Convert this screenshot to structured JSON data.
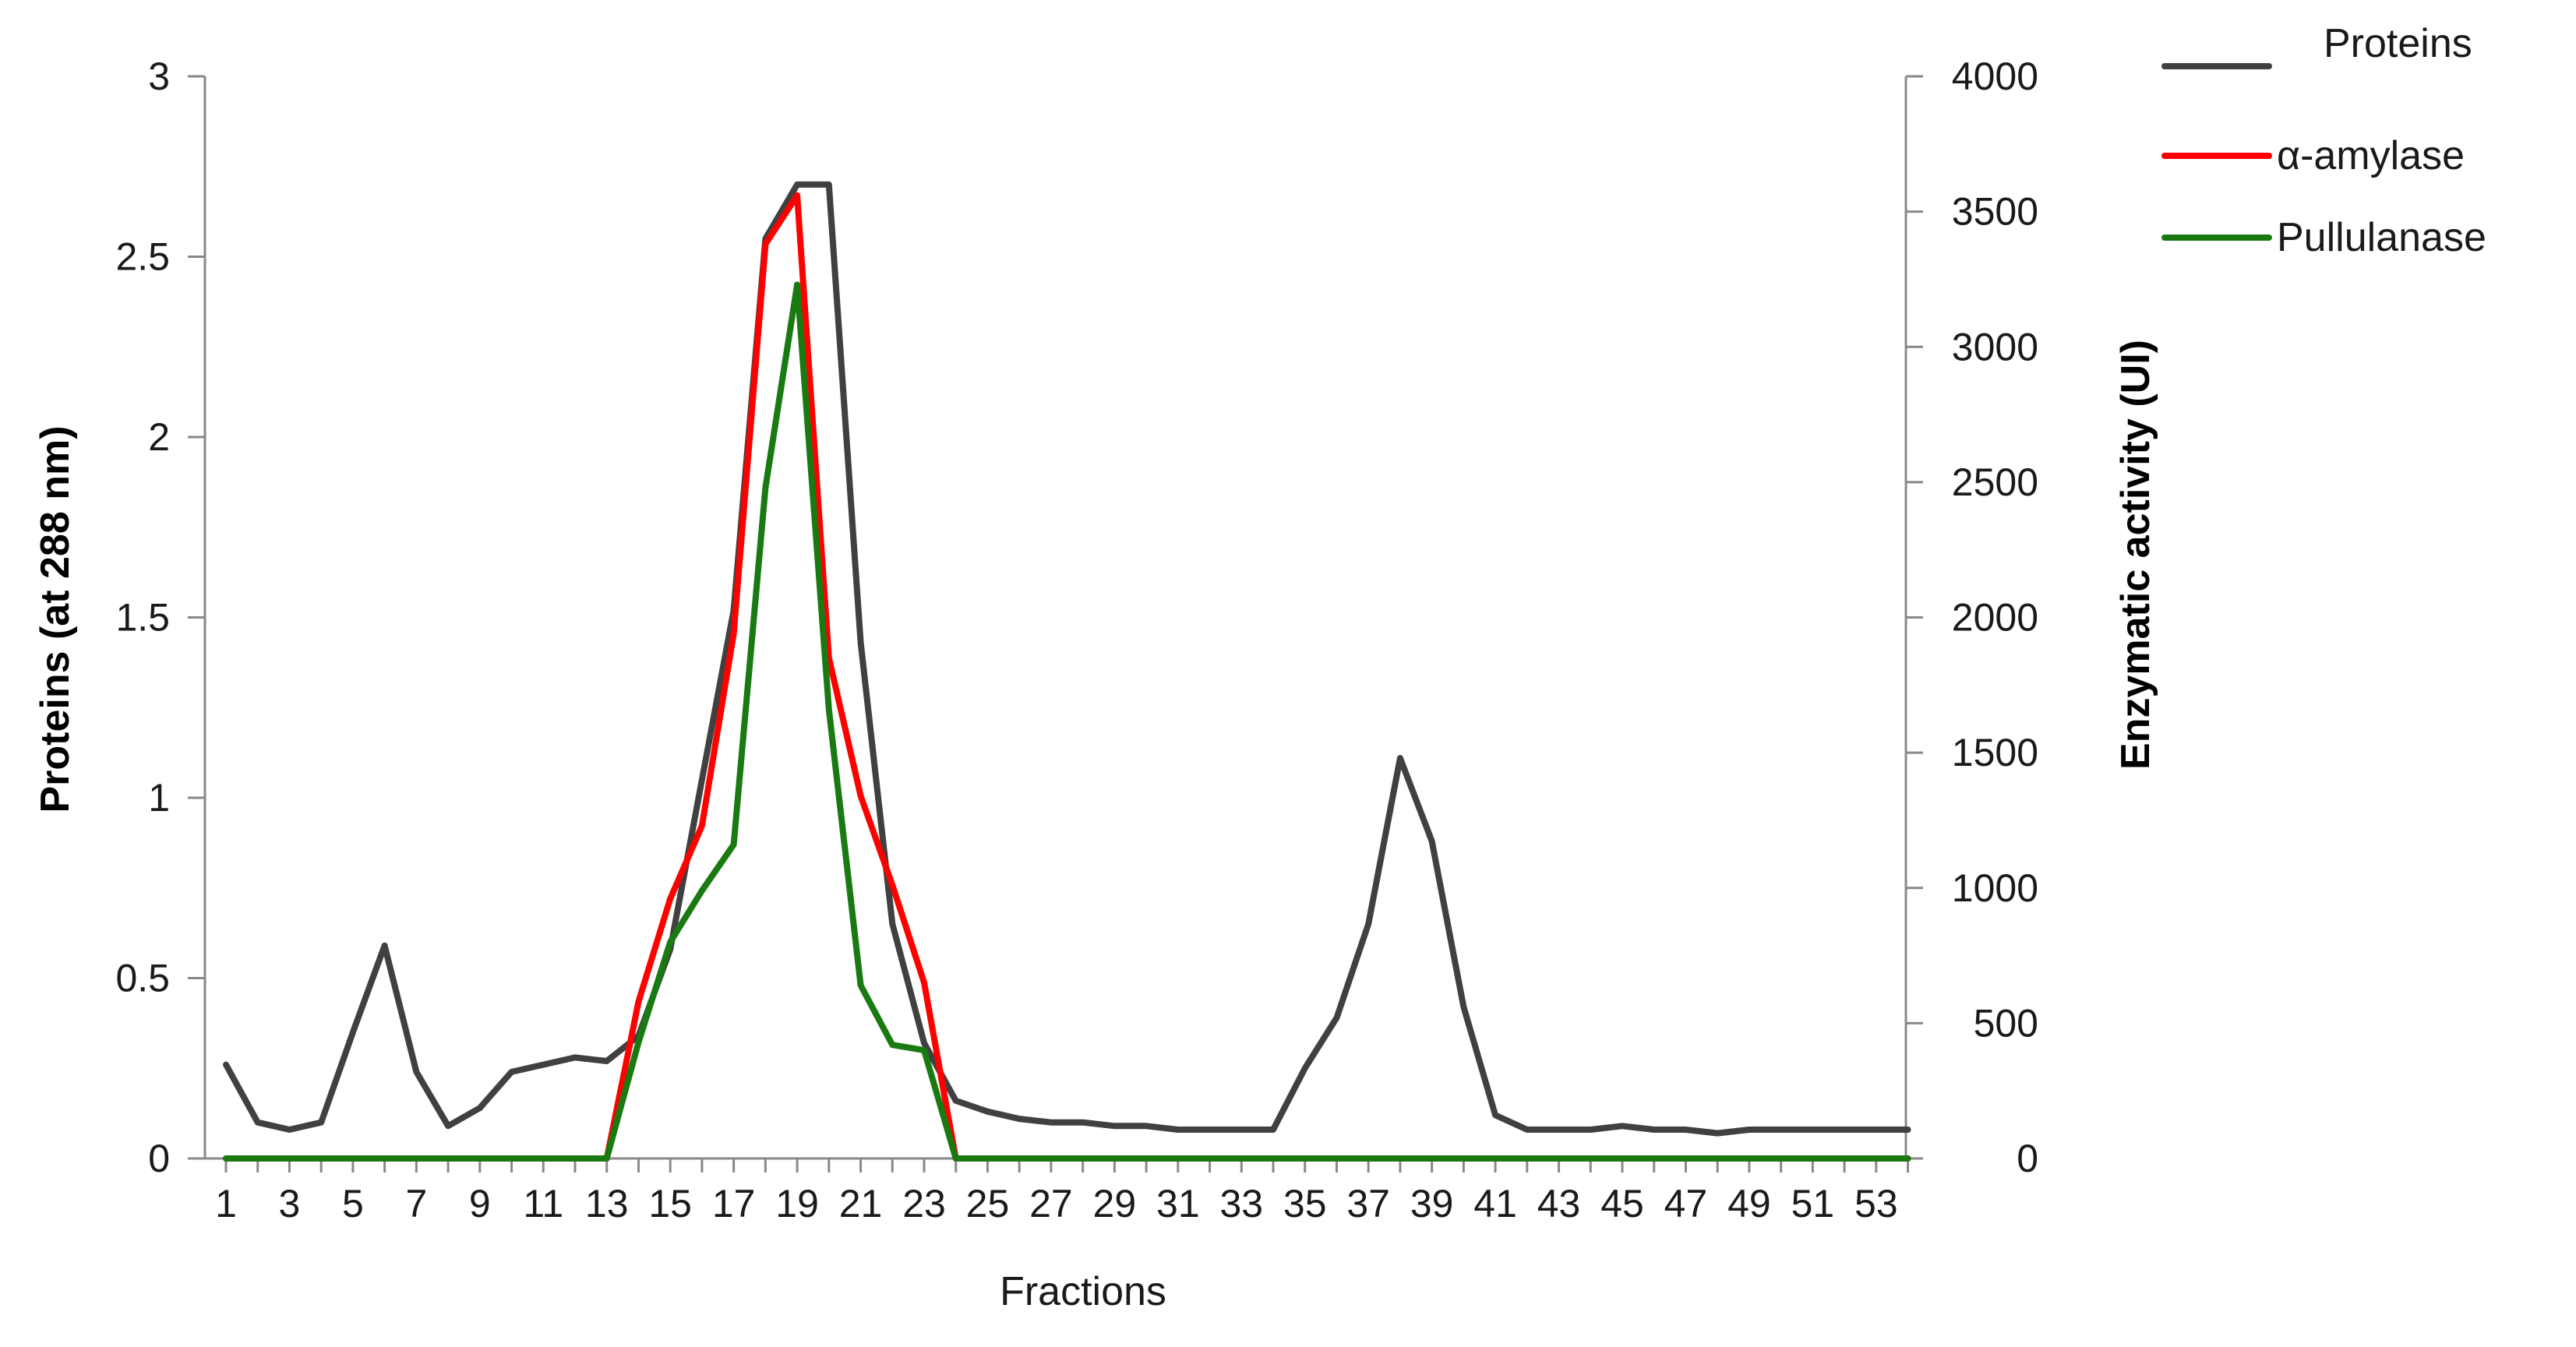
{
  "chart_data": {
    "type": "line",
    "xlabel": "Fractions",
    "ylabel": "Proteins (at 288 nm)",
    "y2label": "Enzymatic activity (UI)",
    "x": [
      1,
      2,
      3,
      4,
      5,
      6,
      7,
      8,
      9,
      10,
      11,
      12,
      13,
      14,
      15,
      16,
      17,
      18,
      19,
      20,
      21,
      22,
      23,
      24,
      25,
      26,
      27,
      28,
      29,
      30,
      31,
      32,
      33,
      34,
      35,
      36,
      37,
      38,
      39,
      40,
      41,
      42,
      43,
      44,
      45,
      46,
      47,
      48,
      49,
      50,
      51,
      52,
      53,
      54
    ],
    "x_tick_labels": [
      "1",
      "3",
      "5",
      "7",
      "9",
      "11",
      "13",
      "15",
      "17",
      "19",
      "21",
      "23",
      "25",
      "27",
      "29",
      "31",
      "33",
      "35",
      "37",
      "39",
      "41",
      "43",
      "45",
      "47",
      "49",
      "51",
      "53"
    ],
    "ylim": [
      0,
      3
    ],
    "y_ticks": [
      "0",
      "0.5",
      "1",
      "1.5",
      "2",
      "2.5",
      "3"
    ],
    "y2lim": [
      0,
      4000
    ],
    "y2_ticks": [
      "0",
      "500",
      "1000",
      "1500",
      "2000",
      "2500",
      "3000",
      "3500",
      "4000"
    ],
    "series": [
      {
        "name": "Proteins",
        "axis": "left",
        "color": "#404040",
        "values": [
          0.26,
          0.1,
          0.08,
          0.1,
          0.35,
          0.59,
          0.24,
          0.09,
          0.14,
          0.24,
          0.26,
          0.28,
          0.27,
          0.34,
          0.58,
          1.05,
          1.52,
          2.55,
          2.7,
          2.7,
          1.43,
          0.65,
          0.32,
          0.16,
          0.13,
          0.11,
          0.1,
          0.1,
          0.09,
          0.09,
          0.08,
          0.08,
          0.08,
          0.08,
          0.25,
          0.39,
          0.65,
          1.11,
          0.88,
          0.42,
          0.12,
          0.08,
          0.08,
          0.08,
          0.09,
          0.08,
          0.08,
          0.07,
          0.08,
          0.08,
          0.08,
          0.08,
          0.08,
          0.08
        ]
      },
      {
        "name": "α-amylase",
        "axis": "right",
        "color": "#ff0000",
        "values": [
          0,
          0,
          0,
          0,
          0,
          0,
          0,
          0,
          0,
          0,
          0,
          0,
          0,
          580,
          960,
          1230,
          1940,
          3380,
          3560,
          1850,
          1340,
          1010,
          650,
          0,
          0,
          0,
          0,
          0,
          0,
          0,
          0,
          0,
          0,
          0,
          0,
          0,
          0,
          0,
          0,
          0,
          0,
          0,
          0,
          0,
          0,
          0,
          0,
          0,
          0,
          0,
          0,
          0,
          0,
          0
        ]
      },
      {
        "name": "Pullulanase",
        "axis": "right",
        "color": "#1a7a12",
        "values": [
          0,
          0,
          0,
          0,
          0,
          0,
          0,
          0,
          0,
          0,
          0,
          0,
          0,
          430,
          800,
          990,
          1160,
          2480,
          3230,
          1660,
          640,
          420,
          400,
          0,
          0,
          0,
          0,
          0,
          0,
          0,
          0,
          0,
          0,
          0,
          0,
          0,
          0,
          0,
          0,
          0,
          0,
          0,
          0,
          0,
          0,
          0,
          0,
          0,
          0,
          0,
          0,
          0,
          0,
          0
        ]
      }
    ],
    "legend": {
      "placement": "top-right",
      "entries": [
        "Proteins",
        "α-amylase",
        "Pullulanase"
      ]
    },
    "grid": false
  }
}
